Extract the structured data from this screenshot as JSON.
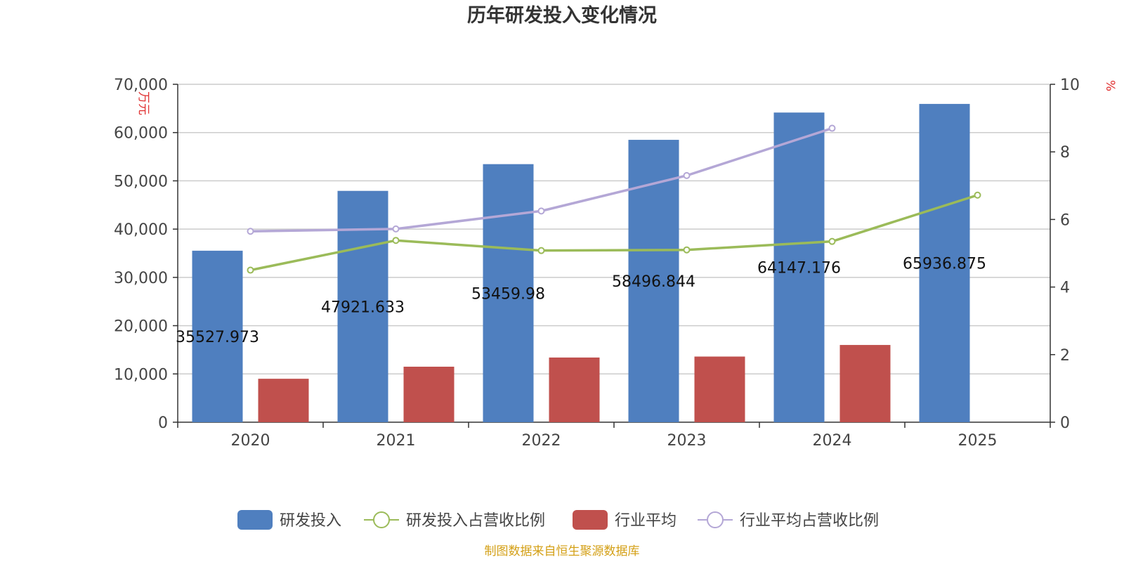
{
  "chart_data": {
    "type": "bar",
    "title": "历年研发投入变化情况",
    "left_axis_unit": "万元",
    "right_axis_unit": "%",
    "categories": [
      "2020",
      "2021",
      "2022",
      "2023",
      "2024",
      "2025"
    ],
    "left_ylim": [
      0,
      70000
    ],
    "left_ticks": [
      "0",
      "10,000",
      "20,000",
      "30,000",
      "40,000",
      "50,000",
      "60,000",
      "70,000"
    ],
    "right_ylim": [
      0,
      10
    ],
    "right_ticks": [
      "0",
      "2",
      "4",
      "6",
      "8",
      "10"
    ],
    "grid": true,
    "legend_position": "bottom",
    "series": [
      {
        "name": "研发投入",
        "kind": "bar",
        "axis": "left",
        "color": "#4f7fbf",
        "values": [
          35527.973,
          47921.633,
          53459.98,
          58496.844,
          64147.176,
          65936.875
        ],
        "labels": [
          "35527.973",
          "47921.633",
          "53459.98",
          "58496.844",
          "64147.176",
          "65936.875"
        ]
      },
      {
        "name": "研发投入占营收比例",
        "kind": "line",
        "axis": "right",
        "color": "#9bbb59",
        "values": [
          4.5,
          5.38,
          5.08,
          5.1,
          5.35,
          6.72
        ]
      },
      {
        "name": "行业平均",
        "kind": "bar",
        "axis": "left",
        "color": "#c0504d",
        "values": [
          9000,
          11500,
          13400,
          13600,
          16000,
          null
        ]
      },
      {
        "name": "行业平均占营收比例",
        "kind": "line",
        "axis": "right",
        "color": "#b4a7d6",
        "values": [
          5.65,
          5.72,
          6.25,
          7.3,
          8.7,
          null
        ]
      }
    ],
    "source": "制图数据来自恒生聚源数据库"
  }
}
